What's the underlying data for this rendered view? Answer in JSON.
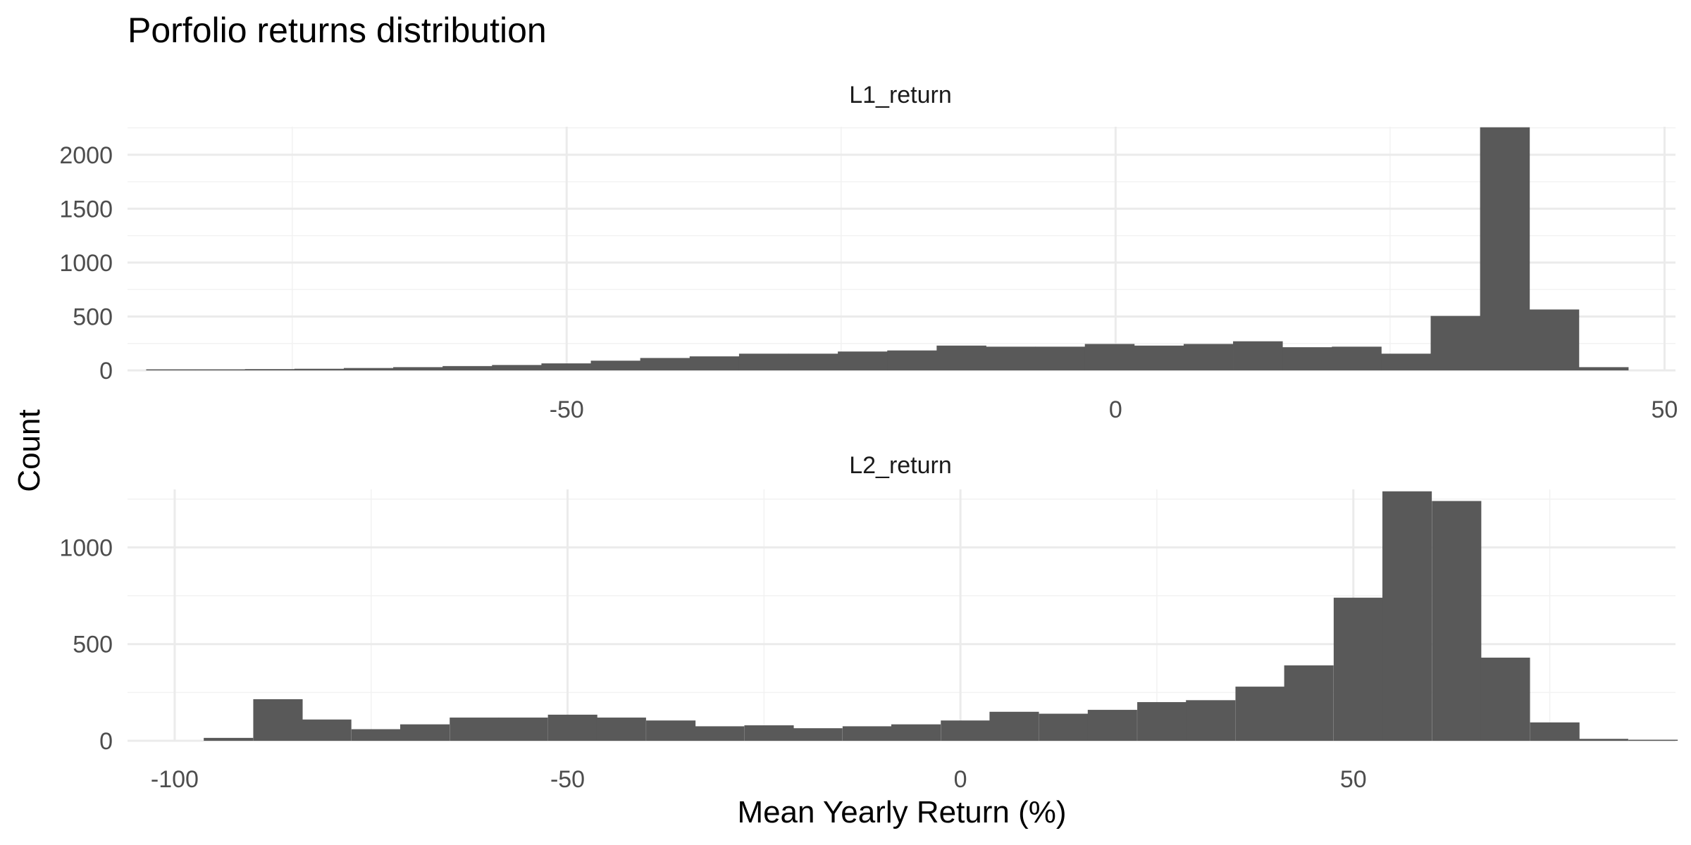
{
  "chart_data": {
    "type": "bar",
    "title": "Porfolio returns distribution",
    "xlabel": "Mean Yearly Return (%)",
    "ylabel": "Count",
    "grid": true,
    "legend": "none",
    "bar_color": "#595959",
    "panels": [
      {
        "name": "L1_return",
        "xlim": [
          -90,
          51
        ],
        "ylim": [
          0,
          2260
        ],
        "x_ticks": [
          -50,
          0,
          50
        ],
        "y_ticks": [
          0,
          500,
          1000,
          1500,
          2000
        ],
        "bin_width": 4.5,
        "bin_starts": [
          -88.3,
          -83.8,
          -79.3,
          -74.8,
          -70.3,
          -65.8,
          -61.3,
          -56.8,
          -52.3,
          -47.8,
          -43.3,
          -38.8,
          -34.3,
          -29.8,
          -25.3,
          -20.8,
          -16.3,
          -11.8,
          -7.3,
          -2.8,
          1.7,
          6.2,
          10.7,
          15.2,
          19.7,
          24.2,
          28.7,
          33.2,
          37.7,
          42.2
        ],
        "counts": [
          5,
          8,
          12,
          15,
          22,
          30,
          40,
          50,
          65,
          90,
          115,
          130,
          155,
          155,
          175,
          185,
          230,
          220,
          220,
          245,
          230,
          245,
          270,
          215,
          220,
          155,
          505,
          2255,
          565,
          30
        ]
      },
      {
        "name": "L2_return",
        "xlim": [
          -106,
          91
        ],
        "ylim": [
          0,
          1300
        ],
        "x_ticks": [
          -100,
          -50,
          0,
          50
        ],
        "y_ticks": [
          0,
          500,
          1000
        ],
        "bin_width": 6.25,
        "bin_starts": [
          -96.3,
          -90.0,
          -83.8,
          -77.5,
          -71.3,
          -65.0,
          -58.8,
          -52.5,
          -46.3,
          -40.0,
          -33.8,
          -27.5,
          -21.3,
          -15.0,
          -8.8,
          -2.5,
          3.7,
          10.0,
          16.2,
          22.5,
          28.7,
          35.0,
          41.2,
          47.5,
          53.7,
          60.0,
          66.2,
          72.5,
          78.7,
          85.0
        ],
        "counts": [
          15,
          215,
          110,
          60,
          85,
          120,
          120,
          135,
          120,
          105,
          75,
          80,
          65,
          75,
          85,
          105,
          150,
          140,
          160,
          200,
          210,
          280,
          390,
          740,
          1290,
          1240,
          430,
          95,
          10,
          5
        ]
      }
    ]
  }
}
